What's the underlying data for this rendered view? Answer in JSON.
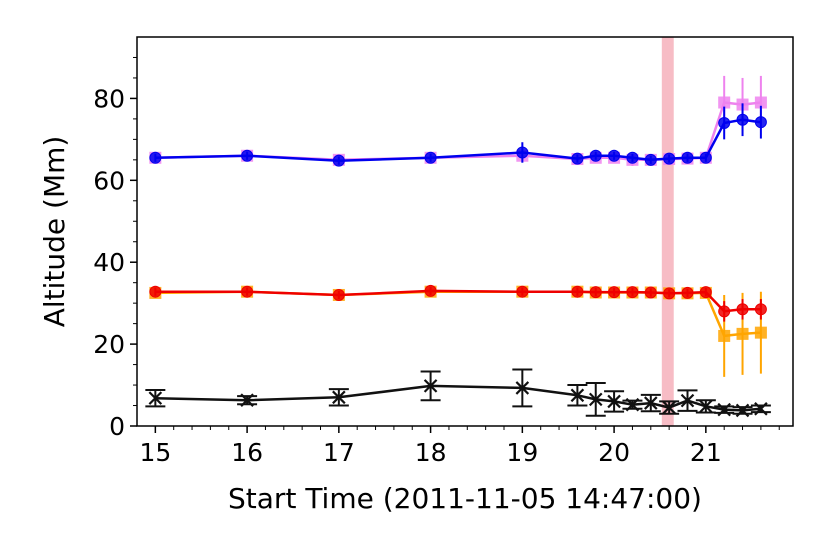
{
  "chart_data": {
    "type": "line",
    "xlabel": "Start Time (2011-11-05 14:47:00)",
    "ylabel": "Altitude (Mm)",
    "xlim": [
      14.8,
      21.95
    ],
    "ylim": [
      0,
      95
    ],
    "xticks": [
      15,
      16,
      17,
      18,
      19,
      20,
      21
    ],
    "yticks": [
      0,
      20,
      40,
      60,
      80
    ],
    "highlight_band": {
      "x0": 20.52,
      "x1": 20.65,
      "color": "#f4a6b2"
    },
    "grid": false,
    "series": [
      {
        "color": "#ee82ee",
        "marker": "square",
        "points": [
          {
            "x": 15.0,
            "y": 65.5,
            "err": 1.0
          },
          {
            "x": 16.0,
            "y": 66.0,
            "err": 1.0
          },
          {
            "x": 17.0,
            "y": 65.0,
            "err": 1.0
          },
          {
            "x": 18.0,
            "y": 65.5,
            "err": 1.0
          },
          {
            "x": 19.0,
            "y": 66.0,
            "err": 1.5
          },
          {
            "x": 19.6,
            "y": 65.2,
            "err": 1.0
          },
          {
            "x": 19.8,
            "y": 65.5,
            "err": 1.0
          },
          {
            "x": 20.0,
            "y": 65.5,
            "err": 1.0
          },
          {
            "x": 20.2,
            "y": 65.0,
            "err": 1.5
          },
          {
            "x": 20.4,
            "y": 65.0,
            "err": 1.0
          },
          {
            "x": 20.6,
            "y": 65.2,
            "err": 1.0
          },
          {
            "x": 20.8,
            "y": 65.3,
            "err": 1.0
          },
          {
            "x": 21.0,
            "y": 65.5,
            "err": 1.0
          },
          {
            "x": 21.2,
            "y": 79.0,
            "err": 6.5
          },
          {
            "x": 21.4,
            "y": 78.5,
            "err": 6.5
          },
          {
            "x": 21.6,
            "y": 79.0,
            "err": 6.5
          }
        ]
      },
      {
        "color": "#0000ee",
        "marker": "circle",
        "points": [
          {
            "x": 15.0,
            "y": 65.5,
            "err": 1.0
          },
          {
            "x": 16.0,
            "y": 66.0,
            "err": 1.0
          },
          {
            "x": 17.0,
            "y": 64.8,
            "err": 1.0
          },
          {
            "x": 18.0,
            "y": 65.5,
            "err": 1.0
          },
          {
            "x": 19.0,
            "y": 66.8,
            "err": 2.5
          },
          {
            "x": 19.6,
            "y": 65.3,
            "err": 1.0
          },
          {
            "x": 19.8,
            "y": 66.0,
            "err": 1.0
          },
          {
            "x": 20.0,
            "y": 66.0,
            "err": 1.0
          },
          {
            "x": 20.2,
            "y": 65.5,
            "err": 1.0
          },
          {
            "x": 20.4,
            "y": 65.0,
            "err": 1.0
          },
          {
            "x": 20.6,
            "y": 65.3,
            "err": 1.0
          },
          {
            "x": 20.8,
            "y": 65.5,
            "err": 1.0
          },
          {
            "x": 21.0,
            "y": 65.5,
            "err": 1.0
          },
          {
            "x": 21.2,
            "y": 74.0,
            "err": 4.0
          },
          {
            "x": 21.4,
            "y": 74.8,
            "err": 4.0
          },
          {
            "x": 21.6,
            "y": 74.2,
            "err": 4.0
          }
        ]
      },
      {
        "color": "#ffa500",
        "marker": "square",
        "points": [
          {
            "x": 15.0,
            "y": 32.5,
            "err": 1.0
          },
          {
            "x": 16.0,
            "y": 32.8,
            "err": 1.0
          },
          {
            "x": 17.0,
            "y": 32.0,
            "err": 1.0
          },
          {
            "x": 18.0,
            "y": 32.8,
            "err": 1.0
          },
          {
            "x": 19.0,
            "y": 32.8,
            "err": 1.0
          },
          {
            "x": 19.6,
            "y": 32.8,
            "err": 1.0
          },
          {
            "x": 19.8,
            "y": 32.6,
            "err": 1.0
          },
          {
            "x": 20.0,
            "y": 32.6,
            "err": 1.0
          },
          {
            "x": 20.2,
            "y": 32.6,
            "err": 1.0
          },
          {
            "x": 20.4,
            "y": 32.6,
            "err": 1.0
          },
          {
            "x": 20.6,
            "y": 32.4,
            "err": 1.0
          },
          {
            "x": 20.8,
            "y": 32.4,
            "err": 1.0
          },
          {
            "x": 21.0,
            "y": 32.5,
            "err": 1.0
          },
          {
            "x": 21.2,
            "y": 22.0,
            "err": 10.0
          },
          {
            "x": 21.4,
            "y": 22.5,
            "err": 10.0
          },
          {
            "x": 21.6,
            "y": 22.8,
            "err": 10.0
          }
        ]
      },
      {
        "color": "#ee0000",
        "marker": "circle",
        "points": [
          {
            "x": 15.0,
            "y": 32.8,
            "err": 1.0
          },
          {
            "x": 16.0,
            "y": 32.8,
            "err": 1.0
          },
          {
            "x": 17.0,
            "y": 32.0,
            "err": 1.0
          },
          {
            "x": 18.0,
            "y": 33.0,
            "err": 1.0
          },
          {
            "x": 19.0,
            "y": 32.8,
            "err": 1.0
          },
          {
            "x": 19.6,
            "y": 32.8,
            "err": 1.0
          },
          {
            "x": 19.8,
            "y": 32.7,
            "err": 1.0
          },
          {
            "x": 20.0,
            "y": 32.7,
            "err": 1.0
          },
          {
            "x": 20.2,
            "y": 32.7,
            "err": 1.0
          },
          {
            "x": 20.4,
            "y": 32.6,
            "err": 1.0
          },
          {
            "x": 20.6,
            "y": 32.4,
            "err": 1.0
          },
          {
            "x": 20.8,
            "y": 32.5,
            "err": 1.0
          },
          {
            "x": 21.0,
            "y": 32.7,
            "err": 1.0
          },
          {
            "x": 21.2,
            "y": 28.0,
            "err": 2.5
          },
          {
            "x": 21.4,
            "y": 28.5,
            "err": 2.5
          },
          {
            "x": 21.6,
            "y": 28.5,
            "err": 2.5
          }
        ]
      },
      {
        "color": "#111111",
        "marker": "x",
        "points": [
          {
            "x": 15.0,
            "y": 6.8,
            "err": 2.0
          },
          {
            "x": 16.0,
            "y": 6.3,
            "err": 1.0
          },
          {
            "x": 17.0,
            "y": 7.0,
            "err": 2.0
          },
          {
            "x": 18.0,
            "y": 9.8,
            "err": 3.5
          },
          {
            "x": 19.0,
            "y": 9.3,
            "err": 4.5
          },
          {
            "x": 19.6,
            "y": 7.5,
            "err": 2.5
          },
          {
            "x": 19.8,
            "y": 6.5,
            "err": 4.0
          },
          {
            "x": 20.0,
            "y": 6.0,
            "err": 2.5
          },
          {
            "x": 20.2,
            "y": 5.2,
            "err": 1.0
          },
          {
            "x": 20.4,
            "y": 5.6,
            "err": 2.0
          },
          {
            "x": 20.6,
            "y": 4.5,
            "err": 1.5
          },
          {
            "x": 20.8,
            "y": 6.2,
            "err": 2.5
          },
          {
            "x": 21.0,
            "y": 4.8,
            "err": 1.5
          },
          {
            "x": 21.2,
            "y": 4.0,
            "err": 0.8
          },
          {
            "x": 21.4,
            "y": 3.8,
            "err": 0.8
          },
          {
            "x": 21.6,
            "y": 4.2,
            "err": 0.8
          }
        ]
      }
    ]
  }
}
